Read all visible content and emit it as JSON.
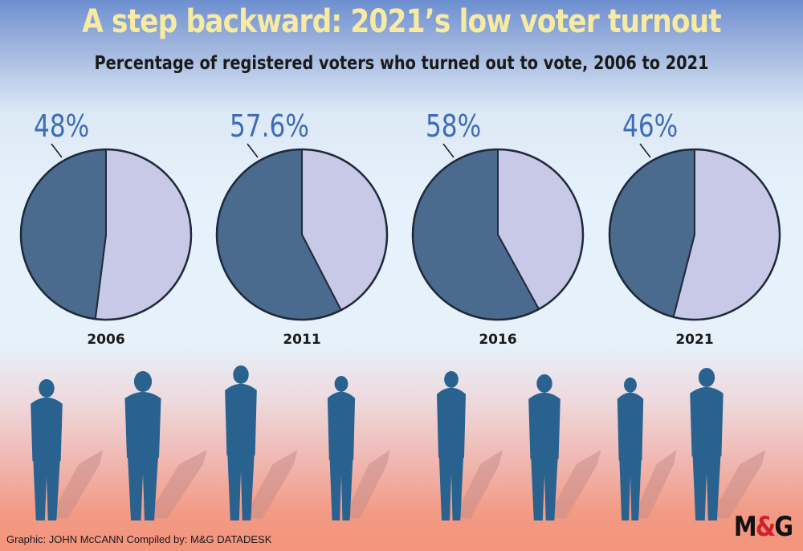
{
  "title": "A step backward: 2021’s low voter turnout",
  "subtitle": "Percentage of registered voters who turned out to vote, 2006 to 2021",
  "chart_data": {
    "type": "pie",
    "charts": [
      {
        "year": "2006",
        "turnout": 48,
        "label": "48%"
      },
      {
        "year": "2011",
        "turnout": 57.6,
        "label": "57.6%"
      },
      {
        "year": "2016",
        "turnout": 58,
        "label": "58%"
      },
      {
        "year": "2021",
        "turnout": 46,
        "label": "46%"
      }
    ],
    "colors": {
      "turnout": "#4a6a8e",
      "remainder": "#c8c9e6",
      "label": "#3f6db5",
      "silhouette": "#29628f"
    }
  },
  "footer": "Graphic: JOHN McCANN  Compiled by: M&G DATADESK",
  "logo": {
    "left": "M",
    "amp": "&",
    "right": "G"
  }
}
